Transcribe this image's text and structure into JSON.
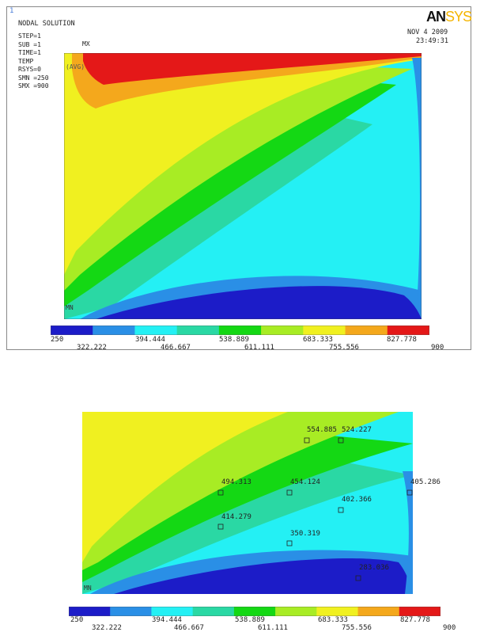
{
  "top": {
    "window_number": "1",
    "title": "NODAL SOLUTION",
    "info_lines": [
      "STEP=1",
      "SUB =1",
      "TIME=1",
      "TEMP",
      "RSYS=0",
      "SMN =250",
      "SMX =900"
    ],
    "mx_label": "MX",
    "avg_label": "(AVG)",
    "mn_label": "MN",
    "logo_an": "AN",
    "logo_sys": "SYS",
    "date": "NOV  4 2009",
    "time": "23:49:31"
  },
  "legend": {
    "colors": [
      "#1c1cc8",
      "#2a8fe6",
      "#24f0f4",
      "#2ad8a4",
      "#14d814",
      "#a8ec24",
      "#f0f020",
      "#f4a81c",
      "#e41818"
    ],
    "labels_top": [
      "250",
      "394.444",
      "538.889",
      "683.333",
      "827.778"
    ],
    "labels_bottom": [
      "322.222",
      "466.667",
      "611.111",
      "755.556",
      "900"
    ]
  },
  "probes": [
    {
      "value": "554.885"
    },
    {
      "value": "524.227"
    },
    {
      "value": "494.313"
    },
    {
      "value": "454.124"
    },
    {
      "value": "405.286"
    },
    {
      "value": "402.366"
    },
    {
      "value": "414.279"
    },
    {
      "value": "350.319"
    },
    {
      "value": "283.036"
    }
  ],
  "bottom": {
    "mn_label": "MN"
  }
}
